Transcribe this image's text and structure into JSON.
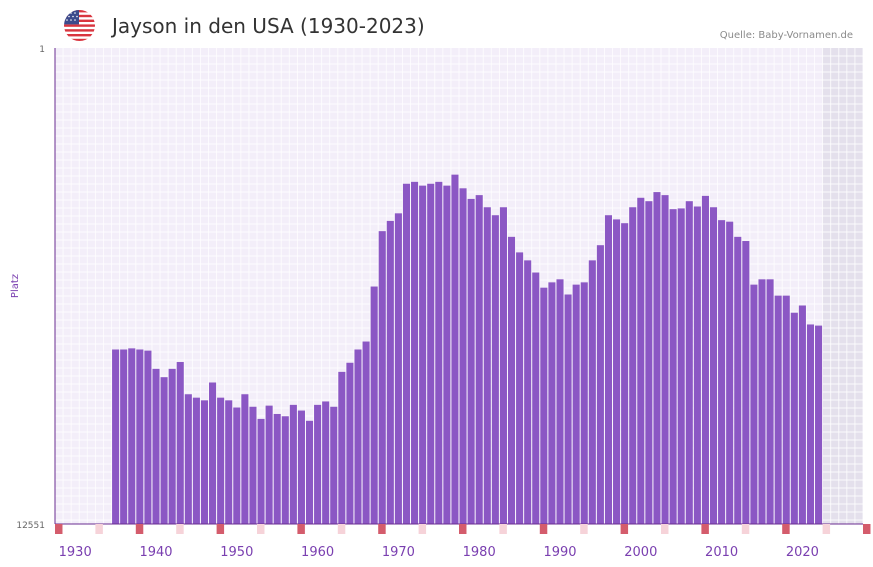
{
  "header": {
    "title": "Jayson in den USA (1930-2023)",
    "source": "Quelle: Baby-Vornamen.de"
  },
  "chart_data": {
    "type": "bar",
    "title": "Jayson in den USA (1930-2023)",
    "xlabel": "",
    "ylabel": "Platz",
    "y_inverted": true,
    "ylim": [
      1,
      12551
    ],
    "y_tick_labels": [
      "1",
      "12551"
    ],
    "x_tick_labels": [
      "1930",
      "1940",
      "1950",
      "1960",
      "1970",
      "1980",
      "1990",
      "2000",
      "2010",
      "2020"
    ],
    "x_range": [
      1928,
      2028
    ],
    "shaded_from_year": 2023,
    "colors": {
      "bar": "#8B57C4",
      "plot_bg": "#F3EEF9",
      "shaded_bg": "#E4E0EC",
      "axis": "#6A2C91",
      "marker_dark": "#D45C6C",
      "marker_light": "#F6D3D9"
    },
    "series": [
      {
        "name": "Jayson",
        "years": [
          1935,
          1936,
          1937,
          1938,
          1939,
          1940,
          1941,
          1942,
          1943,
          1944,
          1945,
          1946,
          1947,
          1948,
          1949,
          1950,
          1951,
          1952,
          1953,
          1954,
          1955,
          1956,
          1957,
          1958,
          1959,
          1960,
          1961,
          1962,
          1963,
          1964,
          1965,
          1966,
          1967,
          1968,
          1969,
          1970,
          1971,
          1972,
          1973,
          1974,
          1975,
          1976,
          1977,
          1978,
          1979,
          1980,
          1981,
          1982,
          1983,
          1984,
          1985,
          1986,
          1987,
          1988,
          1989,
          1990,
          1991,
          1992,
          1993,
          1994,
          1995,
          1996,
          1997,
          1998,
          1999,
          2000,
          2001,
          2002,
          2003,
          2004,
          2005,
          2006,
          2007,
          2008,
          2009,
          2010,
          2011,
          2012,
          2013,
          2014,
          2015,
          2016,
          2017,
          2018,
          2019,
          2020,
          2021,
          2022
        ],
        "ranks": [
          7950,
          7950,
          7920,
          7950,
          7980,
          8460,
          8680,
          8460,
          8280,
          9130,
          9220,
          9290,
          8820,
          9220,
          9290,
          9480,
          9130,
          9460,
          9780,
          9430,
          9650,
          9710,
          9410,
          9560,
          9830,
          9410,
          9320,
          9460,
          8540,
          8300,
          7950,
          7740,
          6290,
          4830,
          4560,
          4360,
          3580,
          3530,
          3630,
          3580,
          3530,
          3630,
          3340,
          3700,
          3980,
          3880,
          4200,
          4410,
          4200,
          4980,
          5390,
          5600,
          5920,
          6320,
          6180,
          6100,
          6500,
          6240,
          6180,
          5600,
          5200,
          4410,
          4520,
          4620,
          4200,
          3950,
          4040,
          3800,
          3880,
          4250,
          4230,
          4040,
          4180,
          3900,
          4200,
          4540,
          4580,
          4980,
          5090,
          6240,
          6100,
          6100,
          6530,
          6530,
          6980,
          6790,
          7290,
          7320
        ]
      }
    ]
  }
}
